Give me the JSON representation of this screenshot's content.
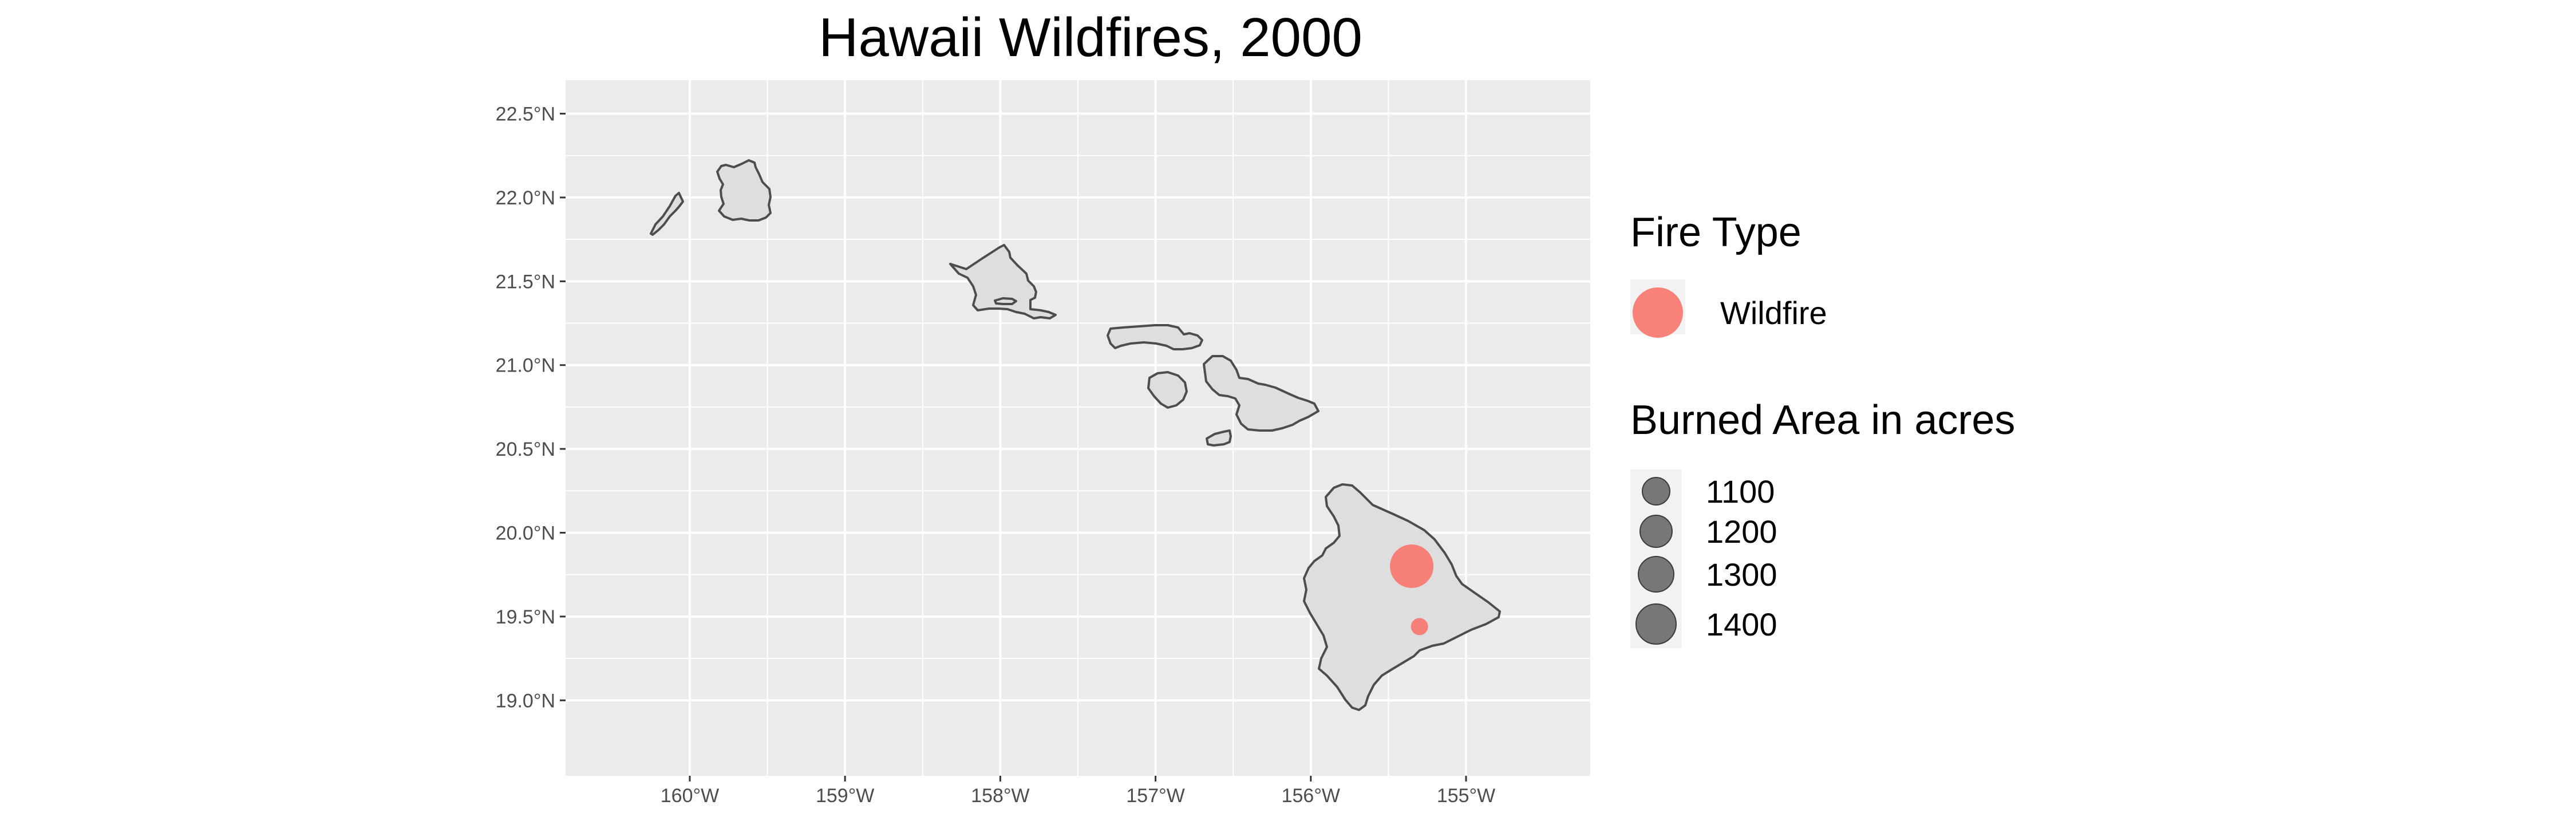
{
  "chart_data": {
    "type": "map",
    "title": "Hawaii Wildfires, 2000",
    "region": "Hawaii",
    "xlim": [
      -160.8,
      -154.2
    ],
    "ylim": [
      18.55,
      22.7
    ],
    "x_ticks": [
      -160,
      -159,
      -158,
      -157,
      -156,
      -155
    ],
    "x_tick_labels": [
      "160°W",
      "159°W",
      "158°W",
      "157°W",
      "156°W",
      "155°W"
    ],
    "y_ticks": [
      19.0,
      19.5,
      20.0,
      20.5,
      21.0,
      21.5,
      22.0,
      22.5
    ],
    "y_tick_labels": [
      "19.0°N",
      "19.5°N",
      "20.0°N",
      "20.5°N",
      "21.0°N",
      "21.5°N",
      "22.0°N",
      "22.5°N"
    ],
    "grid": true,
    "panel_background": "#ebebeb",
    "land_fill": "#dedede",
    "land_outline": "#4d4d4d",
    "points": [
      {
        "lon": -155.35,
        "lat": 19.8,
        "fire_type": "Wildfire",
        "acres": 1400
      },
      {
        "lon": -155.3,
        "lat": 19.44,
        "fire_type": "Wildfire",
        "acres": 1000
      }
    ],
    "legend_position": "right",
    "legend_color": {
      "title": "Fire Type",
      "entries": [
        {
          "label": "Wildfire",
          "color": "#f8766d"
        }
      ]
    },
    "legend_size": {
      "title": "Burned Area in acres",
      "entries": [
        {
          "label": "1100",
          "value": 1100
        },
        {
          "label": "1200",
          "value": 1200
        },
        {
          "label": "1300",
          "value": 1300
        },
        {
          "label": "1400",
          "value": 1400
        }
      ],
      "color": "#4d4d4d"
    }
  }
}
